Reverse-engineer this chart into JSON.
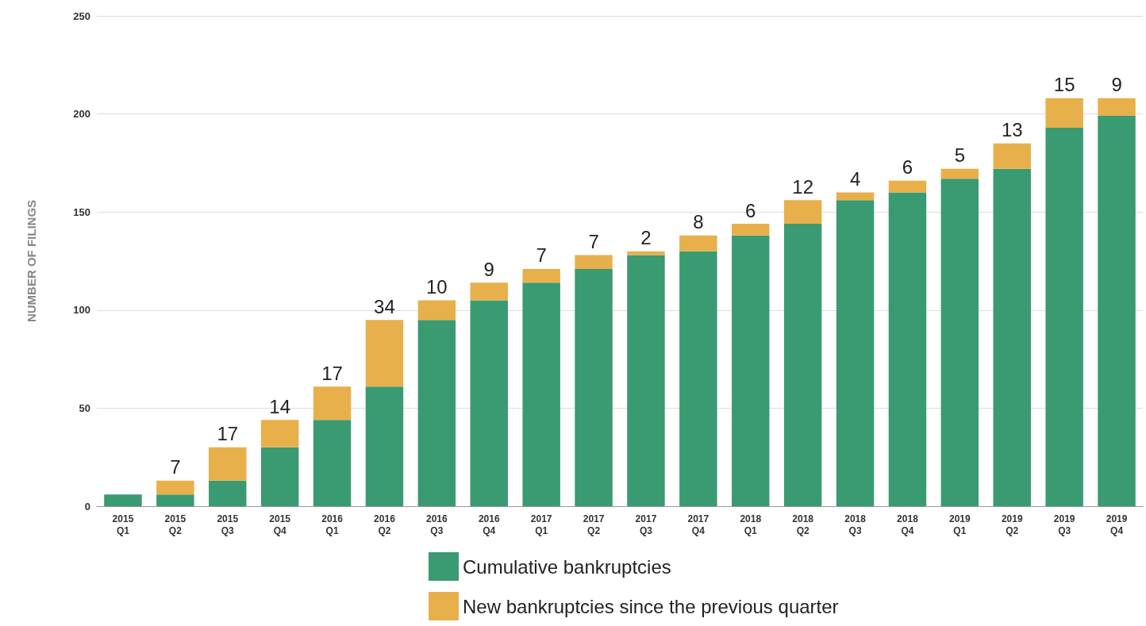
{
  "chart_data": {
    "type": "bar",
    "ylabel": "NUMBER OF FILINGS",
    "stacked": true,
    "categories": [
      "2015\nQ1",
      "2015\nQ2",
      "2015\nQ3",
      "2015\nQ4",
      "2016\nQ1",
      "2016\nQ2",
      "2016\nQ3",
      "2016\nQ4",
      "2017\nQ1",
      "2017\nQ2",
      "2017\nQ3",
      "2017\nQ4",
      "2018\nQ1",
      "2018\nQ2",
      "2018\nQ3",
      "2018\nQ4",
      "2019\nQ1",
      "2019\nQ2",
      "2019\nQ3",
      "2019\nQ4"
    ],
    "series": [
      {
        "name": "Cumulative bankruptcies",
        "color": "#3a9a72",
        "values": [
          6,
          6,
          13,
          30,
          44,
          61,
          95,
          105,
          114,
          121,
          128,
          130,
          138,
          144,
          156,
          160,
          167,
          172,
          193,
          199
        ]
      },
      {
        "name": "New bankruptcies since the previous quarter",
        "color": "#e8b04b",
        "values": [
          null,
          7,
          17,
          14,
          17,
          34,
          10,
          9,
          7,
          7,
          2,
          8,
          6,
          12,
          4,
          6,
          5,
          13,
          15,
          9
        ],
        "value_labels": [
          null,
          "7",
          "17",
          "14",
          "17",
          "34",
          "10",
          "9",
          "7",
          "7",
          "2",
          "8",
          "6",
          "12",
          "4",
          "6",
          "5",
          "13",
          "15",
          "9"
        ]
      }
    ],
    "ylim": [
      0,
      250
    ],
    "yticks": [
      0,
      50,
      100,
      150,
      200,
      250
    ],
    "grid": "y",
    "legend": "bottom"
  }
}
